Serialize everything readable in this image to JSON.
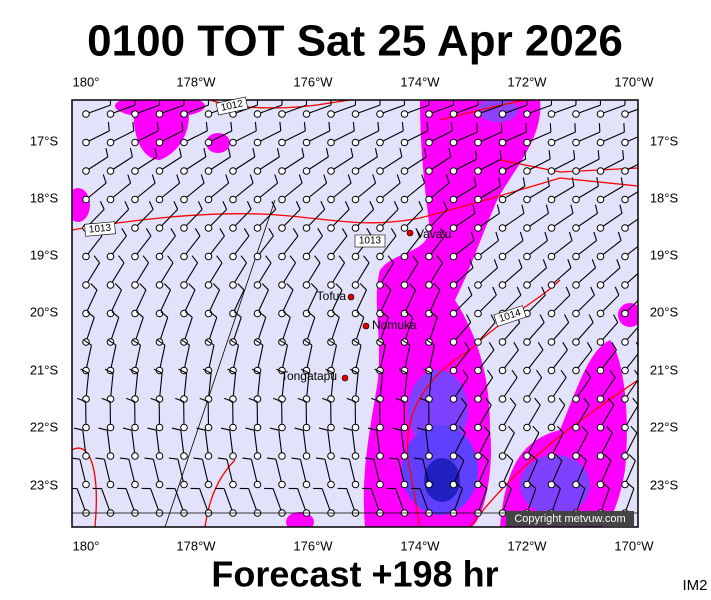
{
  "header": {
    "title": "0100 TOT Sat 25 Apr 2026"
  },
  "footer": {
    "forecast": "Forecast +198 hr",
    "image_id": "IM2"
  },
  "axes": {
    "longitudes": [
      "180°",
      "178°W",
      "176°W",
      "174°W",
      "172°W",
      "170°W"
    ],
    "latitudes": [
      "17°S",
      "18°S",
      "19°S",
      "20°S",
      "21°S",
      "22°S",
      "23°S"
    ]
  },
  "places": [
    "Vava'u",
    "Tofua",
    "Nomuka",
    "Tongatapu"
  ],
  "isobar_labels": [
    "1012",
    "1013",
    "1013",
    "1014"
  ],
  "copyright": "Copyright metvuw.com"
}
